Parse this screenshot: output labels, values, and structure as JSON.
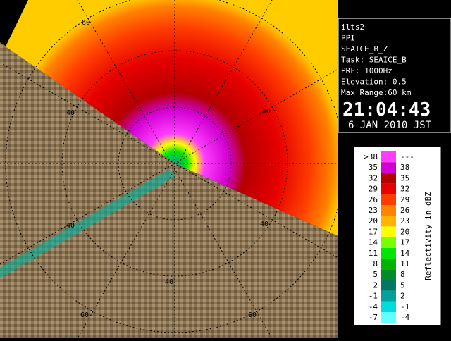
{
  "info": {
    "lines": [
      "ilts2",
      "PPI",
      "SEAICE_B_Z",
      "Task: SEAICE_B",
      "PRF: 1000Hz",
      "Elevation:-0.5",
      "Max Range:60 km"
    ],
    "time": "21:04:43",
    "date": "6 JAN 2010 JST"
  },
  "legend": {
    "title": "Reflectivity in dBZ",
    "rows": [
      {
        "low": ">38",
        "high": "---",
        "color": "#ff3cff"
      },
      {
        "low": "35",
        "high": "38",
        "color": "#d200d2"
      },
      {
        "low": "32",
        "high": "35",
        "color": "#b40000"
      },
      {
        "low": "29",
        "high": "32",
        "color": "#e60000"
      },
      {
        "low": "26",
        "high": "29",
        "color": "#ff3c00"
      },
      {
        "low": "23",
        "high": "26",
        "color": "#ff8200"
      },
      {
        "low": "20",
        "high": "23",
        "color": "#ffb400"
      },
      {
        "low": "17",
        "high": "20",
        "color": "#ffff00"
      },
      {
        "low": "14",
        "high": "17",
        "color": "#78ff00"
      },
      {
        "low": "11",
        "high": "14",
        "color": "#00e600"
      },
      {
        "low": "8",
        "high": "11",
        "color": "#00b400"
      },
      {
        "low": "5",
        "high": "8",
        "color": "#008c28"
      },
      {
        "low": "2",
        "high": "5",
        "color": "#007864"
      },
      {
        "low": "-1",
        "high": "2",
        "color": "#00a0a0"
      },
      {
        "low": "-4",
        "high": "-1",
        "color": "#00dcdc"
      },
      {
        "low": "-7",
        "high": "-4",
        "color": "#64ffff"
      }
    ]
  },
  "range_labels": [
    "60",
    "40",
    "40",
    "40",
    "40",
    "40",
    "60",
    "60"
  ]
}
